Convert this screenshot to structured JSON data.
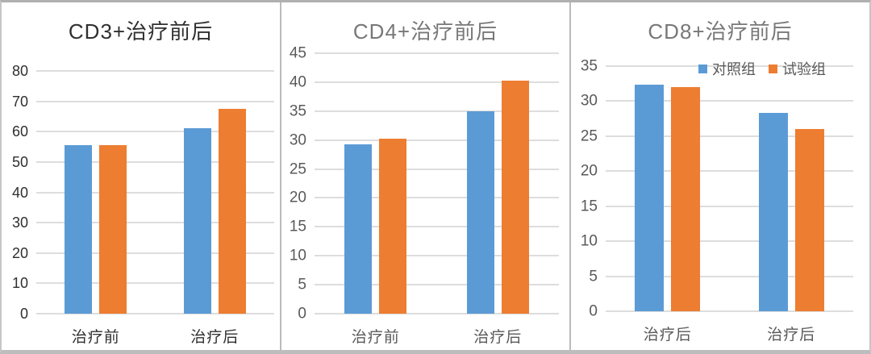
{
  "figure": {
    "series_names": [
      "对照组",
      "试验组"
    ],
    "colors": {
      "series_blue": "#5B9BD5",
      "series_orange": "#ED7D31",
      "gridline": "#dddddd"
    }
  },
  "chart_data": [
    {
      "type": "bar",
      "title": "CD3+治疗前后",
      "categories": [
        "治疗前",
        "治疗后"
      ],
      "series": [
        {
          "name": "对照组",
          "color": "#5B9BD5",
          "values": [
            55.6,
            61.2
          ]
        },
        {
          "name": "试验组",
          "color": "#ED7D31",
          "values": [
            55.5,
            67.6
          ]
        }
      ],
      "xlabel": "",
      "ylabel": "",
      "ylim": [
        0,
        80
      ],
      "ytick_step": 10,
      "yticks": [
        0,
        10,
        20,
        30,
        40,
        50,
        60,
        70,
        80
      ],
      "grid": true,
      "legend_visible": false,
      "legend_position": "none",
      "title_color": "#303030",
      "axis_color": "#2f2f2f"
    },
    {
      "type": "bar",
      "title": "CD4+治疗前后",
      "categories": [
        "治疗前",
        "治疗后"
      ],
      "series": [
        {
          "name": "对照组",
          "color": "#5B9BD5",
          "values": [
            29.3,
            35.0
          ]
        },
        {
          "name": "试验组",
          "color": "#ED7D31",
          "values": [
            30.2,
            40.2
          ]
        }
      ],
      "xlabel": "",
      "ylabel": "",
      "ylim": [
        0,
        45
      ],
      "ytick_step": 5,
      "yticks": [
        0,
        5,
        10,
        15,
        20,
        25,
        30,
        35,
        40,
        45
      ],
      "grid": true,
      "legend_visible": false,
      "legend_position": "none",
      "title_color": "#787878",
      "axis_color": "#595959"
    },
    {
      "type": "bar",
      "title": "CD8+治疗前后",
      "categories": [
        "治疗后",
        "治疗后"
      ],
      "series": [
        {
          "name": "对照组",
          "color": "#5B9BD5",
          "values": [
            32.3,
            28.3
          ]
        },
        {
          "name": "试验组",
          "color": "#ED7D31",
          "values": [
            32.0,
            26.0
          ]
        }
      ],
      "xlabel": "",
      "ylabel": "",
      "ylim": [
        0,
        35
      ],
      "ytick_step": 5,
      "yticks": [
        0,
        5,
        10,
        15,
        20,
        25,
        30,
        35
      ],
      "grid": true,
      "legend_visible": true,
      "legend_position": "top-right",
      "legend_labels": [
        "对照组",
        "试验组"
      ],
      "title_color": "#787878",
      "axis_color": "#595959"
    }
  ]
}
